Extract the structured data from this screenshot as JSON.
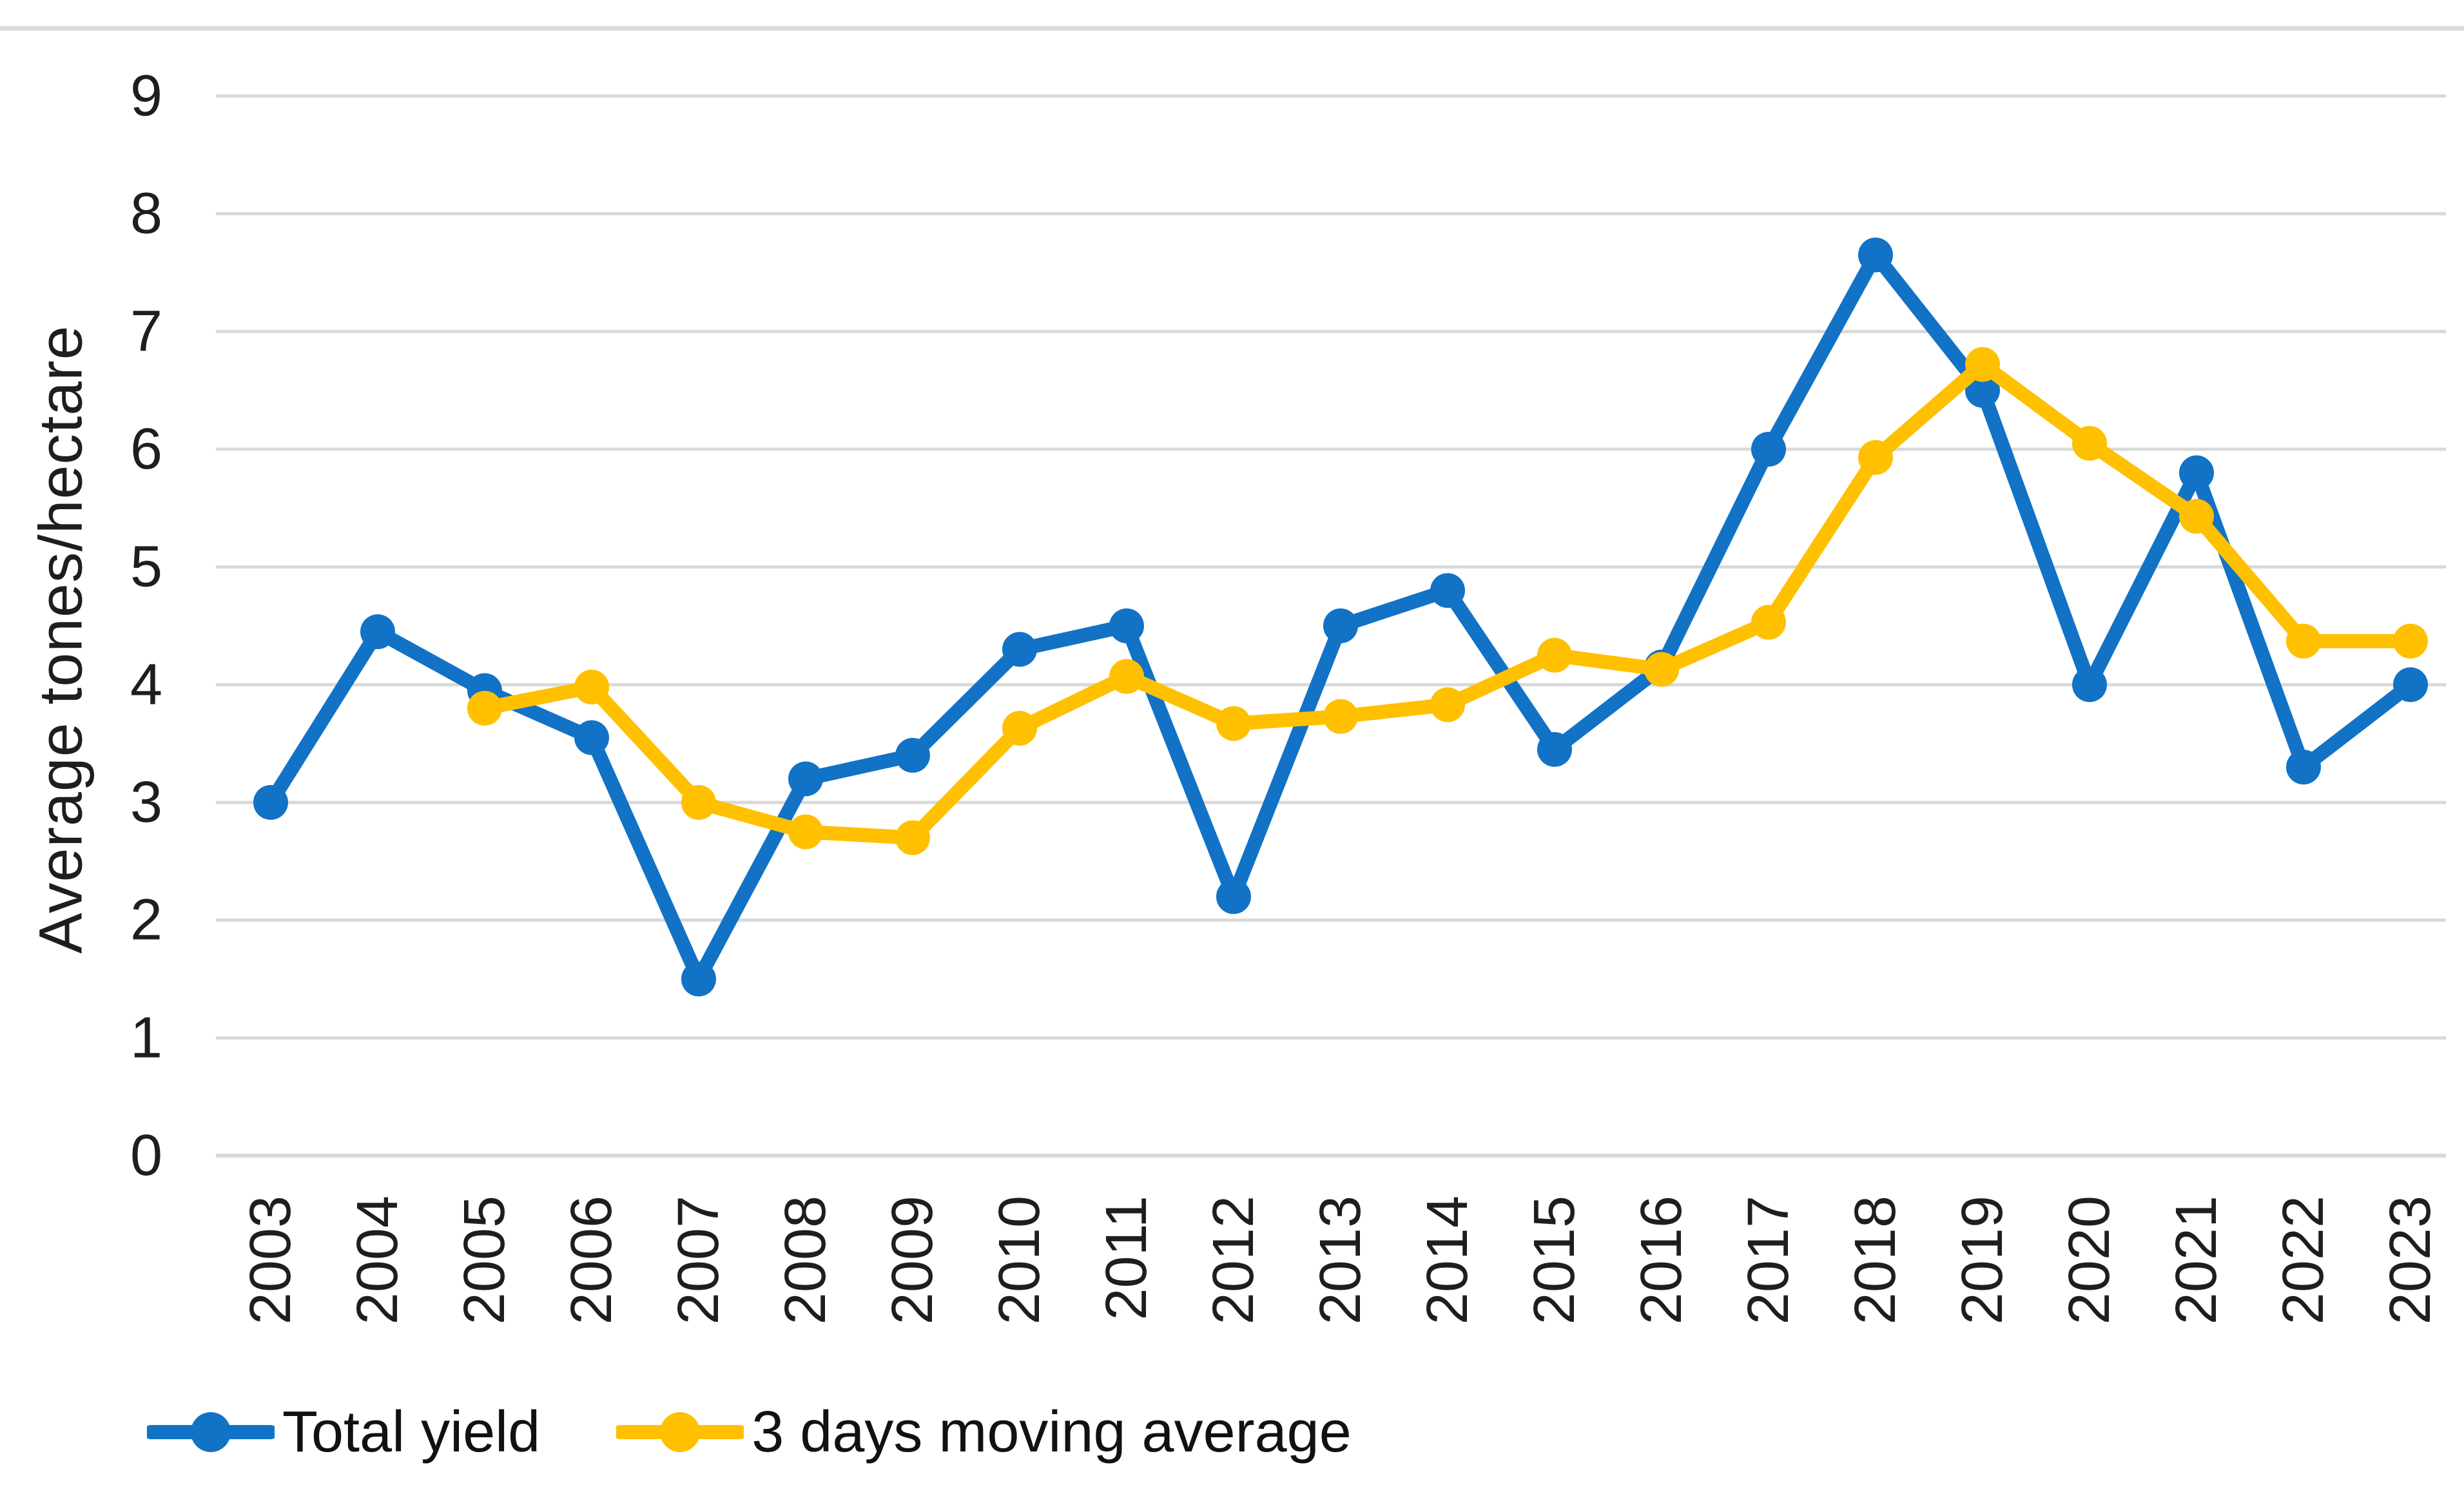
{
  "chart_data": {
    "type": "line",
    "title": "",
    "xlabel": "",
    "ylabel": "Average tones/hectare",
    "ylim": [
      0,
      9
    ],
    "ytick_step": 1,
    "grid": true,
    "legend_position": "bottom-left",
    "gridline_color": "#D9D9D9",
    "axis_text_color": "#1E1E1E",
    "categories": [
      "2003",
      "2004",
      "2005",
      "2006",
      "2007",
      "2008",
      "2009",
      "2010",
      "2011",
      "2012",
      "2013",
      "2014",
      "2015",
      "2016",
      "2017",
      "2018",
      "2019",
      "2020",
      "2021",
      "2022",
      "2023"
    ],
    "series": [
      {
        "name": "Total yield",
        "color": "#1172C6",
        "values": [
          3.0,
          4.45,
          3.95,
          3.55,
          1.5,
          3.2,
          3.4,
          4.3,
          4.5,
          2.2,
          4.5,
          4.8,
          3.45,
          4.15,
          6.0,
          7.65,
          6.5,
          4.0,
          5.8,
          3.3,
          4.0
        ]
      },
      {
        "name": "3 days moving average",
        "color": "#FFC000",
        "values": [
          null,
          null,
          3.8,
          3.98,
          3.0,
          2.75,
          2.7,
          3.63,
          4.07,
          3.67,
          3.73,
          3.83,
          4.25,
          4.13,
          4.53,
          5.93,
          6.72,
          6.05,
          5.43,
          4.37,
          4.37
        ]
      }
    ]
  }
}
